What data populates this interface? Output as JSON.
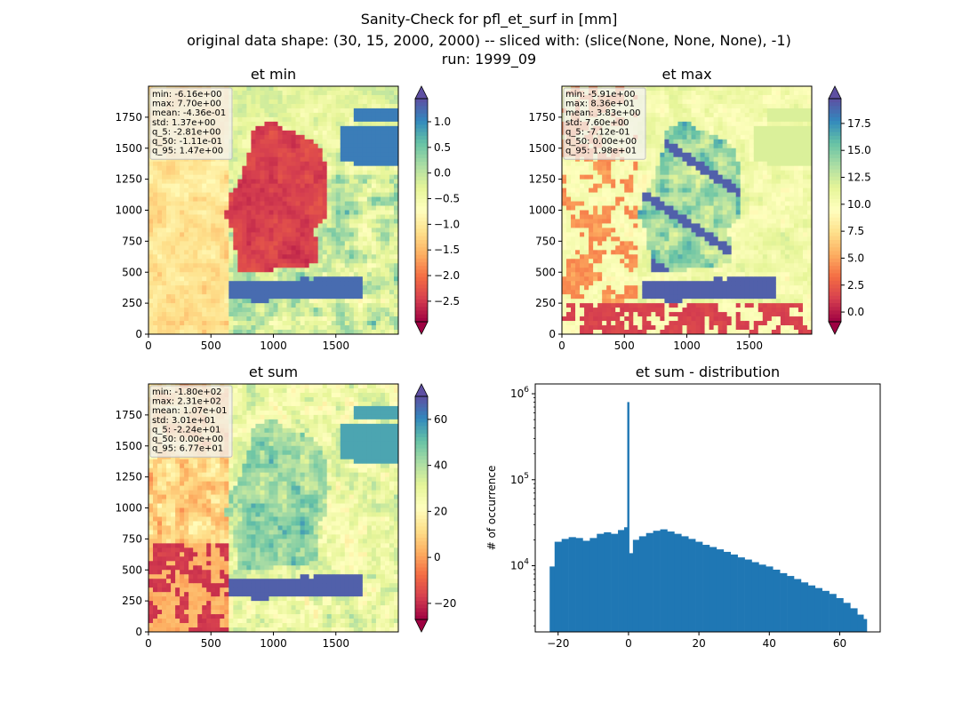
{
  "suptitle": {
    "line1": "Sanity-Check for pfl_et_surf in [mm]",
    "line2": "original data shape: (30, 15, 2000, 2000) -- sliced with: (slice(None, None, None), -1)",
    "line3": "run: 1999_09"
  },
  "colors": {
    "axis": "#000000",
    "histogram_bar": "#1f77b4",
    "stats_box_border": "#bfbfbf",
    "spectral_colormap": [
      "#9e0142",
      "#d53e4f",
      "#f46d43",
      "#fdae61",
      "#fee08b",
      "#ffffbf",
      "#e6f598",
      "#abdda4",
      "#66c2a5",
      "#3288bd",
      "#5e4fa2"
    ]
  },
  "chart_data": [
    {
      "type": "heatmap",
      "title": "et min",
      "xlim": [
        0,
        2000
      ],
      "ylim": [
        0,
        2000
      ],
      "x_ticks": [
        0,
        500,
        1000,
        1500
      ],
      "y_ticks": [
        0,
        250,
        500,
        750,
        1000,
        1250,
        1500,
        1750
      ],
      "colorbar": {
        "range": [
          -2.9,
          1.45
        ],
        "ticks": [
          "1.0",
          "0.5",
          "0.0",
          "−0.5",
          "−1.0",
          "−1.5",
          "−2.0",
          "−2.5"
        ],
        "tick_values": [
          1.0,
          0.5,
          0.0,
          -0.5,
          -1.0,
          -1.5,
          -2.0,
          -2.5
        ],
        "extend": "both",
        "colormap": "Spectral"
      },
      "stats": [
        "min: -6.16e+00",
        "max: 7.70e+00",
        "mean: -4.36e-01",
        "std: 1.37e+00",
        "q_5: -2.81e+00",
        "q_50: -1.11e-01",
        "q_95: 1.47e+00"
      ]
    },
    {
      "type": "heatmap",
      "title": "et max",
      "xlim": [
        0,
        2000
      ],
      "ylim": [
        0,
        2000
      ],
      "x_ticks": [
        0,
        500,
        1000,
        1500
      ],
      "y_ticks": [
        0,
        250,
        500,
        750,
        1000,
        1250,
        1500,
        1750
      ],
      "colorbar": {
        "range": [
          -0.9,
          19.8
        ],
        "ticks": [
          "17.5",
          "15.0",
          "12.5",
          "10.0",
          "7.5",
          "5.0",
          "2.5",
          "0.0"
        ],
        "tick_values": [
          17.5,
          15.0,
          12.5,
          10.0,
          7.5,
          5.0,
          2.5,
          0.0
        ],
        "extend": "both",
        "colormap": "Spectral"
      },
      "stats": [
        "min: -5.91e+00",
        "max: 8.36e+01",
        "mean: 3.83e+00",
        "std: 7.60e+00",
        "q_5: -7.12e-01",
        "q_50: 0.00e+00",
        "q_95: 1.98e+01"
      ]
    },
    {
      "type": "heatmap",
      "title": "et sum",
      "xlim": [
        0,
        2000
      ],
      "ylim": [
        0,
        2000
      ],
      "x_ticks": [
        0,
        500,
        1000,
        1500
      ],
      "y_ticks": [
        0,
        250,
        500,
        750,
        1000,
        1250,
        1500,
        1750
      ],
      "colorbar": {
        "range": [
          -27,
          70
        ],
        "ticks": [
          "60",
          "40",
          "20",
          "0",
          "−20"
        ],
        "tick_values": [
          60,
          40,
          20,
          0,
          -20
        ],
        "extend": "both",
        "colormap": "Spectral"
      },
      "stats": [
        "min: -1.80e+02",
        "max: 2.31e+02",
        "mean: 1.07e+01",
        "std: 3.01e+01",
        "q_5: -2.24e+01",
        "q_50: 0.00e+00",
        "q_95: 6.77e+01"
      ]
    },
    {
      "type": "bar",
      "title": "et sum - distribution",
      "xlabel": "",
      "ylabel": "# of occurrence",
      "xlim": [
        -26.5,
        71.5
      ],
      "yscale": "log",
      "ylim": [
        1700,
        1300000
      ],
      "x_ticks": [
        -20,
        0,
        20,
        40,
        60
      ],
      "x_tick_labels": [
        "−20",
        "0",
        "20",
        "40",
        "60"
      ],
      "y_ticks": [
        10000,
        100000,
        1000000
      ],
      "y_tick_labels": [
        {
          "base": "10",
          "exp": "4"
        },
        {
          "base": "10",
          "exp": "5"
        },
        {
          "base": "10",
          "exp": "6"
        }
      ],
      "bin_range": [
        -22.4,
        67.7
      ],
      "spike": {
        "x": -0.1,
        "count": 800000
      },
      "histogram": [
        {
          "x": -22,
          "count": 9800
        },
        {
          "x": -20,
          "count": 19000
        },
        {
          "x": -18,
          "count": 20500
        },
        {
          "x": -16,
          "count": 21500
        },
        {
          "x": -14,
          "count": 21000
        },
        {
          "x": -12,
          "count": 19500
        },
        {
          "x": -10,
          "count": 21000
        },
        {
          "x": -8,
          "count": 23500
        },
        {
          "x": -6,
          "count": 24500
        },
        {
          "x": -4,
          "count": 23500
        },
        {
          "x": -2,
          "count": 26000
        },
        {
          "x": -0.5,
          "count": 28000
        },
        {
          "x": 0.5,
          "count": 14000
        },
        {
          "x": 2,
          "count": 20000
        },
        {
          "x": 4,
          "count": 22000
        },
        {
          "x": 6,
          "count": 24000
        },
        {
          "x": 8,
          "count": 25500
        },
        {
          "x": 10,
          "count": 26500
        },
        {
          "x": 12,
          "count": 25000
        },
        {
          "x": 14,
          "count": 23500
        },
        {
          "x": 16,
          "count": 22000
        },
        {
          "x": 18,
          "count": 20500
        },
        {
          "x": 20,
          "count": 19000
        },
        {
          "x": 22,
          "count": 17500
        },
        {
          "x": 24,
          "count": 16500
        },
        {
          "x": 26,
          "count": 15500
        },
        {
          "x": 28,
          "count": 14500
        },
        {
          "x": 30,
          "count": 13500
        },
        {
          "x": 32,
          "count": 12500
        },
        {
          "x": 34,
          "count": 11800
        },
        {
          "x": 36,
          "count": 11000
        },
        {
          "x": 38,
          "count": 10300
        },
        {
          "x": 40,
          "count": 9800
        },
        {
          "x": 42,
          "count": 9000
        },
        {
          "x": 44,
          "count": 8200
        },
        {
          "x": 46,
          "count": 7600
        },
        {
          "x": 48,
          "count": 7000
        },
        {
          "x": 50,
          "count": 6400
        },
        {
          "x": 52,
          "count": 5900
        },
        {
          "x": 54,
          "count": 5500
        },
        {
          "x": 56,
          "count": 5100
        },
        {
          "x": 58,
          "count": 4700
        },
        {
          "x": 60,
          "count": 4200
        },
        {
          "x": 62,
          "count": 3700
        },
        {
          "x": 64,
          "count": 3200
        },
        {
          "x": 66,
          "count": 2700
        },
        {
          "x": 67.5,
          "count": 2400
        }
      ]
    }
  ]
}
